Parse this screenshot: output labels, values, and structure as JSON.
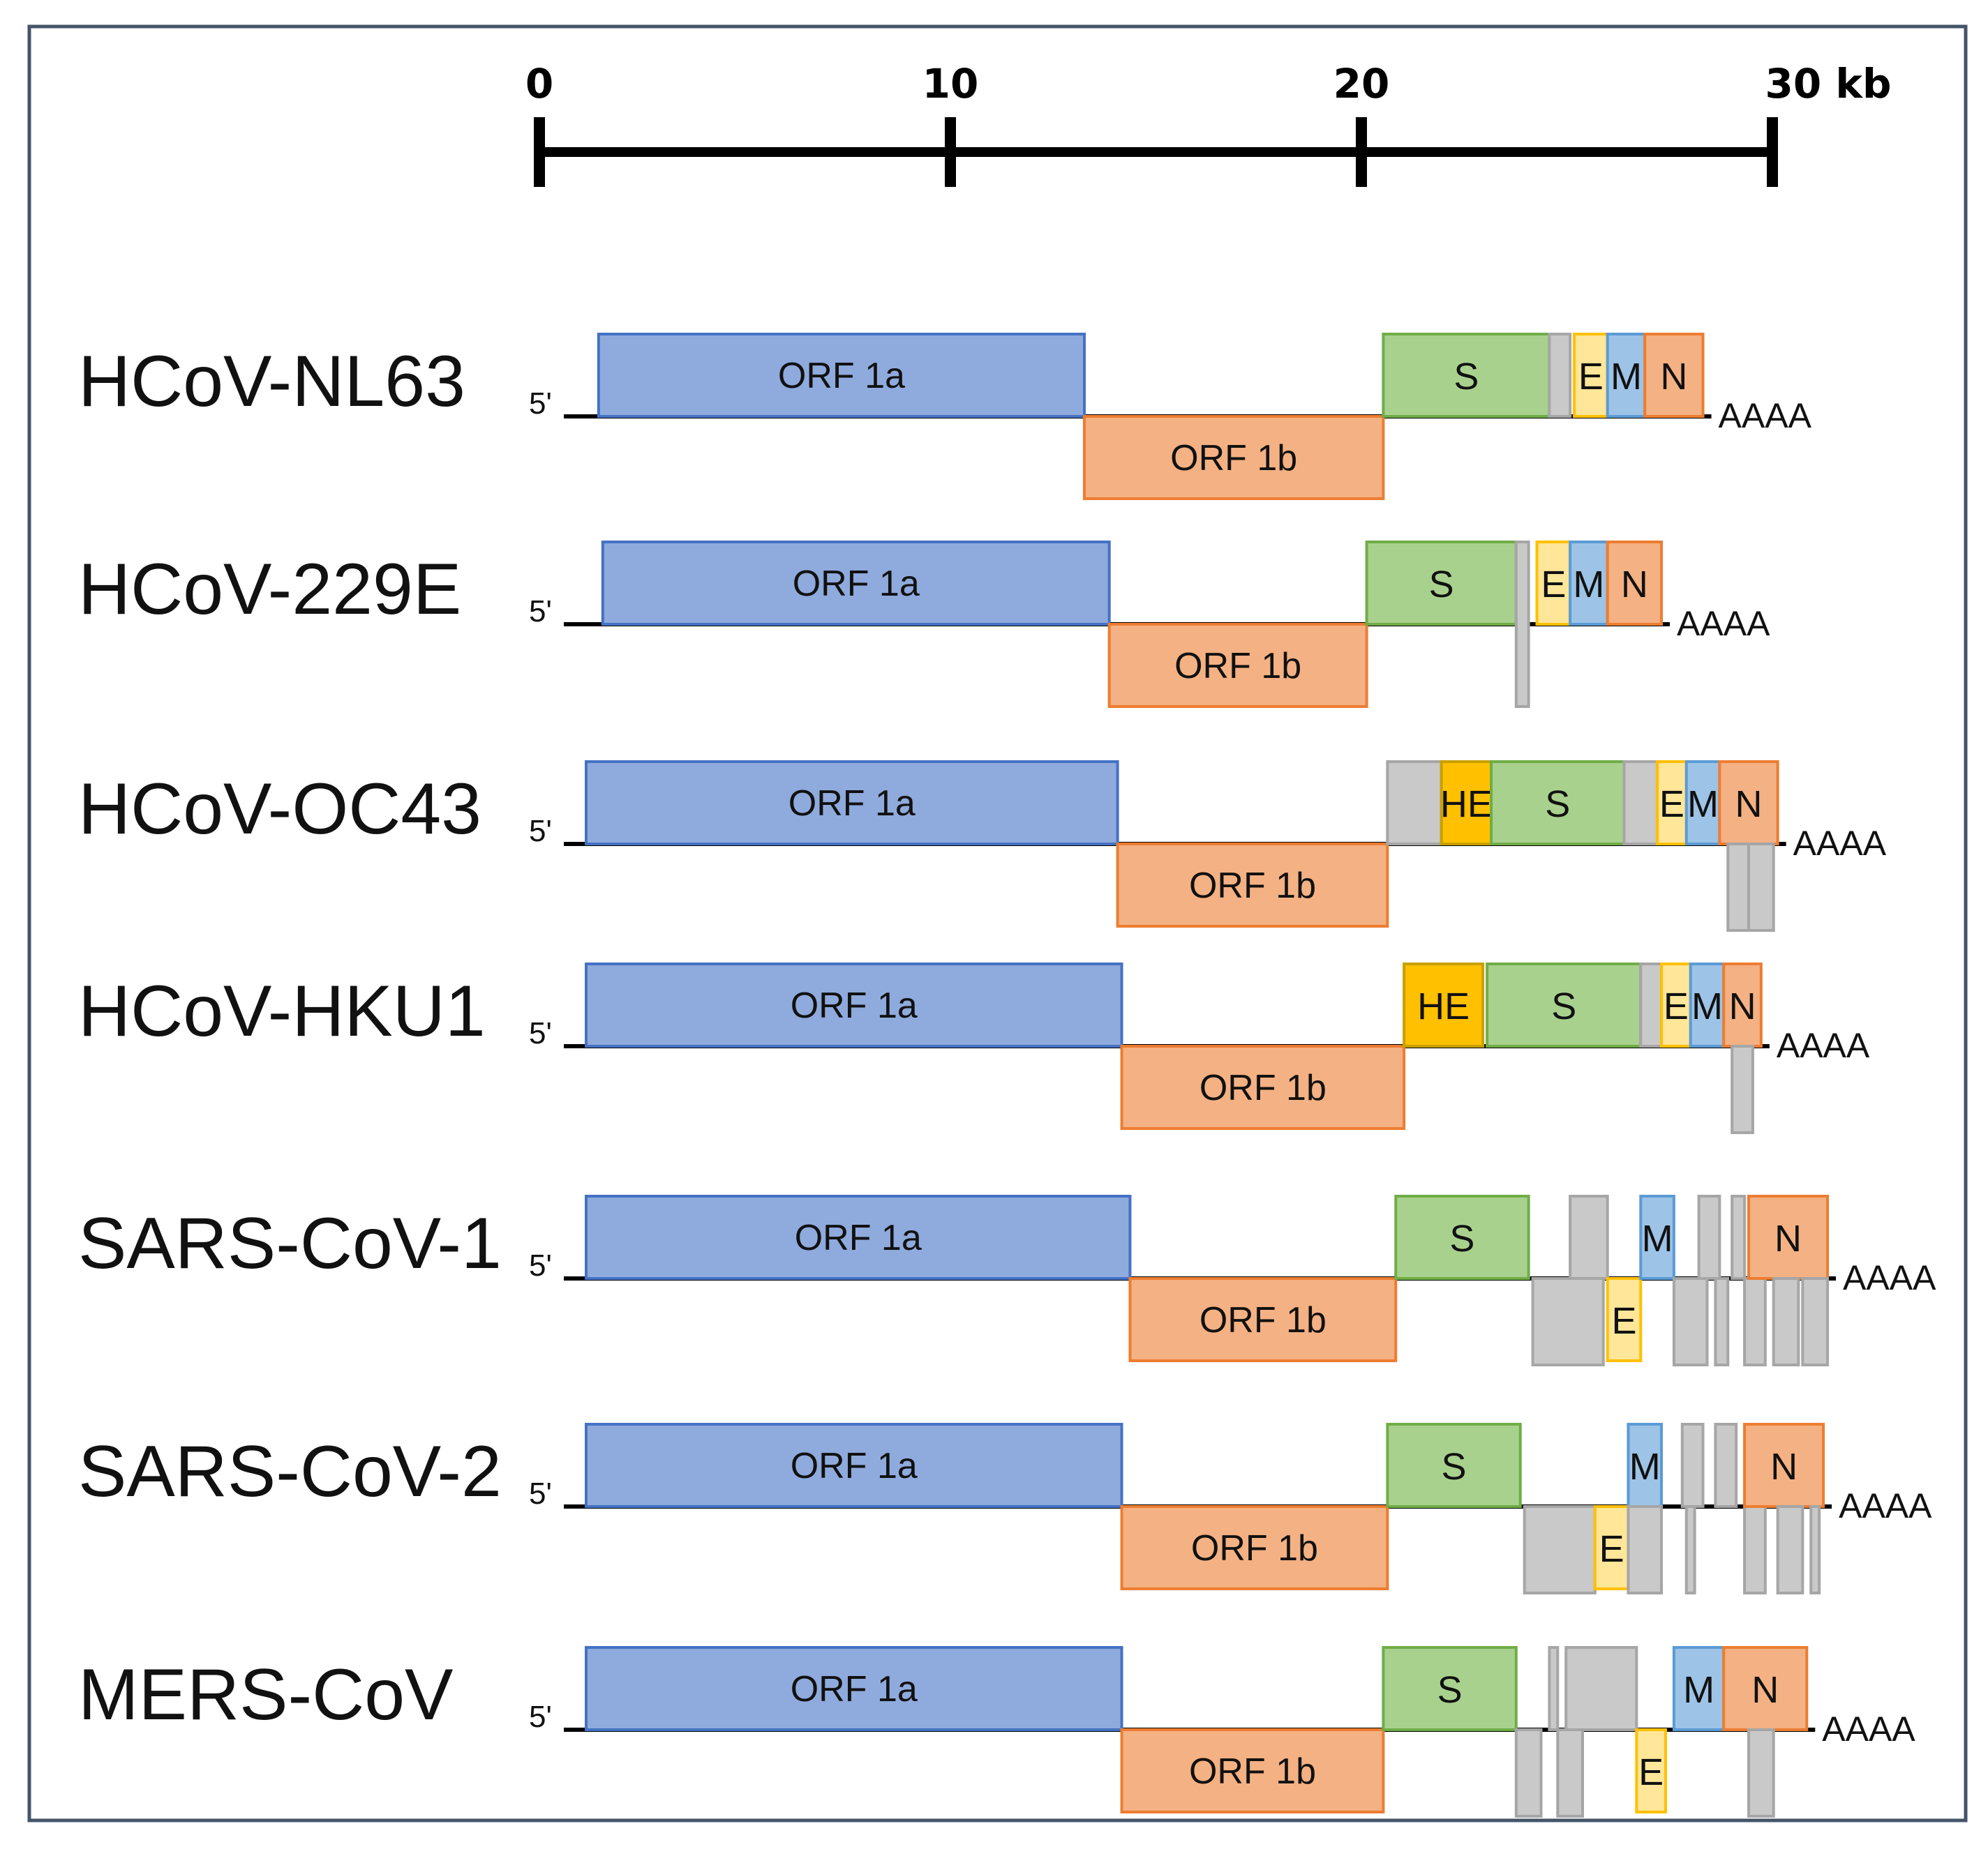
{
  "scale": {
    "unit_suffix": "kb",
    "ticks": [
      {
        "kb": 0,
        "label": "0"
      },
      {
        "kb": 10,
        "label": "10"
      },
      {
        "kb": 20,
        "label": "20"
      },
      {
        "kb": 30,
        "label": "30 kb"
      }
    ]
  },
  "colors": {
    "frame": "#44546a",
    "line": "#000000",
    "orf1a_fill": "#8faadc",
    "orf1a_stroke": "#4472c4",
    "orf1b_fill": "#f4b183",
    "orf1b_stroke": "#ed7d31",
    "s_fill": "#a9d18e",
    "s_stroke": "#70ad47",
    "he_fill": "#ffc000",
    "he_stroke": "#c9a000",
    "e_fill": "#ffe699",
    "e_stroke": "#ffc000",
    "m_fill": "#9dc3e6",
    "m_stroke": "#5b9bd5",
    "n_fill": "#f4b183",
    "n_stroke": "#ed7d31",
    "acc_fill": "#c9c9c9",
    "acc_stroke": "#a6a6a6"
  },
  "genomes": [
    {
      "name": "HCoV-NL63",
      "five_prime": "5'",
      "poly_a": "AAAA",
      "genes": [
        {
          "id": "orf1a",
          "label": "ORF 1a",
          "start": 0.3,
          "end": 12.0,
          "track": "top"
        },
        {
          "id": "orf1b",
          "label": "ORF 1b",
          "start": 12.0,
          "end": 19.2,
          "track": "bottom"
        },
        {
          "id": "s",
          "label": "S",
          "start": 19.2,
          "end": 23.2,
          "track": "top"
        },
        {
          "id": "acc",
          "label": "",
          "start": 23.2,
          "end": 23.7,
          "track": "top"
        },
        {
          "id": "e",
          "label": "E",
          "start": 23.8,
          "end": 24.6,
          "track": "top"
        },
        {
          "id": "m",
          "label": "M",
          "start": 24.6,
          "end": 25.5,
          "track": "top"
        },
        {
          "id": "n",
          "label": "N",
          "start": 25.5,
          "end": 26.9,
          "track": "top"
        }
      ]
    },
    {
      "name": "HCoV-229E",
      "five_prime": "5'",
      "poly_a": "AAAA",
      "genes": [
        {
          "id": "orf1a",
          "label": "ORF 1a",
          "start": 0.4,
          "end": 12.6,
          "track": "top"
        },
        {
          "id": "orf1b",
          "label": "ORF 1b",
          "start": 12.6,
          "end": 18.8,
          "track": "bottom"
        },
        {
          "id": "s",
          "label": "S",
          "start": 18.8,
          "end": 22.4,
          "track": "top"
        },
        {
          "id": "acc",
          "label": "",
          "start": 22.4,
          "end": 22.7,
          "track": "both"
        },
        {
          "id": "e",
          "label": "E",
          "start": 22.9,
          "end": 23.7,
          "track": "top"
        },
        {
          "id": "m",
          "label": "M",
          "start": 23.7,
          "end": 24.6,
          "track": "top"
        },
        {
          "id": "n",
          "label": "N",
          "start": 24.6,
          "end": 25.9,
          "track": "top"
        }
      ]
    },
    {
      "name": "HCoV-OC43",
      "five_prime": "5'",
      "poly_a": "AAAA",
      "genes": [
        {
          "id": "orf1a",
          "label": "ORF 1a",
          "start": 0.0,
          "end": 12.8,
          "track": "top"
        },
        {
          "id": "orf1b",
          "label": "ORF 1b",
          "start": 12.8,
          "end": 19.3,
          "track": "bottom"
        },
        {
          "id": "acc",
          "label": "",
          "start": 19.3,
          "end": 20.6,
          "track": "top"
        },
        {
          "id": "he",
          "label": "HE",
          "start": 20.6,
          "end": 21.8,
          "track": "top"
        },
        {
          "id": "s",
          "label": "S",
          "start": 21.8,
          "end": 25.0,
          "track": "top"
        },
        {
          "id": "acc",
          "label": "",
          "start": 25.0,
          "end": 25.8,
          "track": "top"
        },
        {
          "id": "e",
          "label": "E",
          "start": 25.8,
          "end": 26.5,
          "track": "top"
        },
        {
          "id": "m",
          "label": "M",
          "start": 26.5,
          "end": 27.3,
          "track": "top"
        },
        {
          "id": "n",
          "label": "N",
          "start": 27.3,
          "end": 28.7,
          "track": "top"
        },
        {
          "id": "acc",
          "label": "",
          "start": 27.5,
          "end": 28.0,
          "track": "bottom"
        },
        {
          "id": "acc",
          "label": "",
          "start": 28.0,
          "end": 28.6,
          "track": "bottom"
        }
      ]
    },
    {
      "name": "HCoV-HKU1",
      "five_prime": "5'",
      "poly_a": "AAAA",
      "genes": [
        {
          "id": "orf1a",
          "label": "ORF 1a",
          "start": 0.0,
          "end": 12.9,
          "track": "top"
        },
        {
          "id": "orf1b",
          "label": "ORF 1b",
          "start": 12.9,
          "end": 19.7,
          "track": "bottom"
        },
        {
          "id": "he",
          "label": "HE",
          "start": 19.7,
          "end": 21.6,
          "track": "top"
        },
        {
          "id": "s",
          "label": "S",
          "start": 21.7,
          "end": 25.4,
          "track": "top"
        },
        {
          "id": "acc",
          "label": "",
          "start": 25.4,
          "end": 25.9,
          "track": "top"
        },
        {
          "id": "e",
          "label": "E",
          "start": 25.9,
          "end": 26.6,
          "track": "top"
        },
        {
          "id": "m",
          "label": "M",
          "start": 26.6,
          "end": 27.4,
          "track": "top"
        },
        {
          "id": "n",
          "label": "N",
          "start": 27.4,
          "end": 28.3,
          "track": "top"
        },
        {
          "id": "acc",
          "label": "",
          "start": 27.6,
          "end": 28.1,
          "track": "bottom"
        }
      ]
    },
    {
      "name": "SARS-CoV-1",
      "five_prime": "5'",
      "poly_a": "AAAA",
      "genes": [
        {
          "id": "orf1a",
          "label": "ORF 1a",
          "start": 0.0,
          "end": 13.1,
          "track": "top"
        },
        {
          "id": "orf1b",
          "label": "ORF 1b",
          "start": 13.1,
          "end": 19.5,
          "track": "bottom"
        },
        {
          "id": "s",
          "label": "S",
          "start": 19.5,
          "end": 22.7,
          "track": "top"
        },
        {
          "id": "acc",
          "label": "",
          "start": 22.8,
          "end": 24.5,
          "track": "bottom"
        },
        {
          "id": "acc",
          "label": "",
          "start": 23.7,
          "end": 24.6,
          "track": "top"
        },
        {
          "id": "e",
          "label": "E",
          "start": 24.6,
          "end": 25.4,
          "track": "bottom"
        },
        {
          "id": "m",
          "label": "M",
          "start": 25.4,
          "end": 26.2,
          "track": "top"
        },
        {
          "id": "acc",
          "label": "",
          "start": 26.2,
          "end": 27.0,
          "track": "bottom"
        },
        {
          "id": "acc",
          "label": "",
          "start": 26.8,
          "end": 27.3,
          "track": "top"
        },
        {
          "id": "acc",
          "label": "",
          "start": 27.2,
          "end": 27.5,
          "track": "bottom"
        },
        {
          "id": "acc",
          "label": "",
          "start": 27.6,
          "end": 27.9,
          "track": "top"
        },
        {
          "id": "acc",
          "label": "",
          "start": 27.9,
          "end": 28.4,
          "track": "bottom"
        },
        {
          "id": "n",
          "label": "N",
          "start": 28.0,
          "end": 29.9,
          "track": "top"
        },
        {
          "id": "acc",
          "label": "",
          "start": 28.6,
          "end": 29.2,
          "track": "bottom"
        },
        {
          "id": "acc",
          "label": "",
          "start": 29.3,
          "end": 29.9,
          "track": "bottom"
        }
      ]
    },
    {
      "name": "SARS-CoV-2",
      "five_prime": "5'",
      "poly_a": "AAAA",
      "genes": [
        {
          "id": "orf1a",
          "label": "ORF 1a",
          "start": 0.0,
          "end": 12.9,
          "track": "top"
        },
        {
          "id": "orf1b",
          "label": "ORF 1b",
          "start": 12.9,
          "end": 19.3,
          "track": "bottom"
        },
        {
          "id": "s",
          "label": "S",
          "start": 19.3,
          "end": 22.5,
          "track": "top"
        },
        {
          "id": "acc",
          "label": "",
          "start": 22.6,
          "end": 24.3,
          "track": "bottom"
        },
        {
          "id": "e",
          "label": "E",
          "start": 24.3,
          "end": 25.1,
          "track": "bottom"
        },
        {
          "id": "m",
          "label": "M",
          "start": 25.1,
          "end": 25.9,
          "track": "top"
        },
        {
          "id": "acc",
          "label": "",
          "start": 25.1,
          "end": 25.9,
          "track": "bottom"
        },
        {
          "id": "acc",
          "label": "",
          "start": 26.4,
          "end": 26.9,
          "track": "top"
        },
        {
          "id": "acc",
          "label": "",
          "start": 26.5,
          "end": 26.7,
          "track": "bottom"
        },
        {
          "id": "acc",
          "label": "",
          "start": 27.2,
          "end": 27.7,
          "track": "top"
        },
        {
          "id": "acc",
          "label": "",
          "start": 27.9,
          "end": 28.4,
          "track": "bottom"
        },
        {
          "id": "n",
          "label": "N",
          "start": 27.9,
          "end": 29.8,
          "track": "top"
        },
        {
          "id": "acc",
          "label": "",
          "start": 28.7,
          "end": 29.3,
          "track": "bottom"
        },
        {
          "id": "acc",
          "label": "",
          "start": 29.5,
          "end": 29.7,
          "track": "bottom"
        }
      ]
    },
    {
      "name": "MERS-CoV",
      "five_prime": "5'",
      "poly_a": "AAAA",
      "genes": [
        {
          "id": "orf1a",
          "label": "ORF 1a",
          "start": 0.0,
          "end": 12.9,
          "track": "top"
        },
        {
          "id": "orf1b",
          "label": "ORF 1b",
          "start": 12.9,
          "end": 19.2,
          "track": "bottom"
        },
        {
          "id": "s",
          "label": "S",
          "start": 19.2,
          "end": 22.4,
          "track": "top"
        },
        {
          "id": "acc",
          "label": "",
          "start": 22.4,
          "end": 23.0,
          "track": "bottom"
        },
        {
          "id": "acc",
          "label": "",
          "start": 23.2,
          "end": 23.4,
          "track": "top"
        },
        {
          "id": "acc",
          "label": "",
          "start": 23.4,
          "end": 24.0,
          "track": "bottom"
        },
        {
          "id": "acc",
          "label": "",
          "start": 23.6,
          "end": 25.3,
          "track": "top"
        },
        {
          "id": "e",
          "label": "E",
          "start": 25.3,
          "end": 26.0,
          "track": "bottom"
        },
        {
          "id": "m",
          "label": "M",
          "start": 26.2,
          "end": 27.4,
          "track": "top"
        },
        {
          "id": "n",
          "label": "N",
          "start": 27.4,
          "end": 29.4,
          "track": "top"
        },
        {
          "id": "acc",
          "label": "",
          "start": 28.0,
          "end": 28.6,
          "track": "bottom"
        }
      ]
    }
  ]
}
